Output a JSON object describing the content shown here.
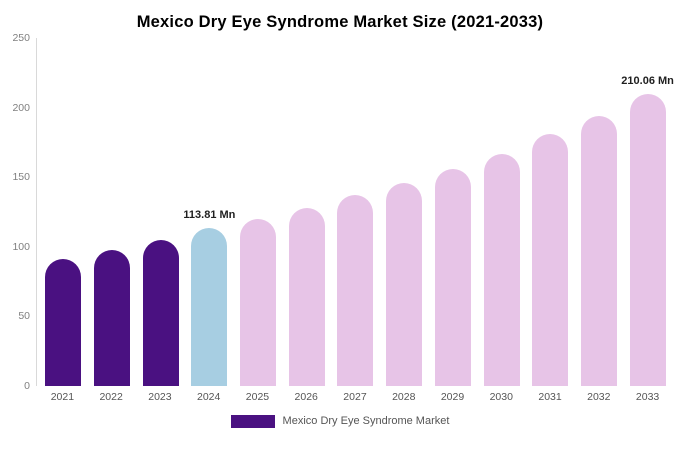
{
  "chart_data": {
    "type": "bar",
    "title": "Mexico Dry Eye Syndrome Market Size (2021-2033)",
    "categories": [
      "2021",
      "2022",
      "2023",
      "2024",
      "2025",
      "2026",
      "2027",
      "2028",
      "2029",
      "2030",
      "2031",
      "2032",
      "2033"
    ],
    "values": [
      91,
      98,
      105,
      113.81,
      120,
      128,
      137,
      146,
      156,
      167,
      181,
      194,
      210.06
    ],
    "unit": "Mn",
    "ylim": [
      0,
      250
    ],
    "y_ticks": [
      250,
      200,
      150,
      100,
      50,
      0
    ],
    "grid": "off",
    "color_groups": [
      "historical",
      "historical",
      "historical",
      "current",
      "forecast",
      "forecast",
      "forecast",
      "forecast",
      "forecast",
      "forecast",
      "forecast",
      "forecast",
      "forecast"
    ],
    "colors": {
      "historical": "#4A1181",
      "current": "#A7CEE2",
      "forecast": "#E7C4E7"
    },
    "annotations": [
      {
        "index": 3,
        "text": "113.81 Mn"
      },
      {
        "index": 12,
        "text": "210.06 Mn"
      }
    ],
    "legend_position": "bottom"
  },
  "legend": {
    "label": "Mexico Dry Eye Syndrome Market",
    "swatch_color": "#4A1181"
  }
}
